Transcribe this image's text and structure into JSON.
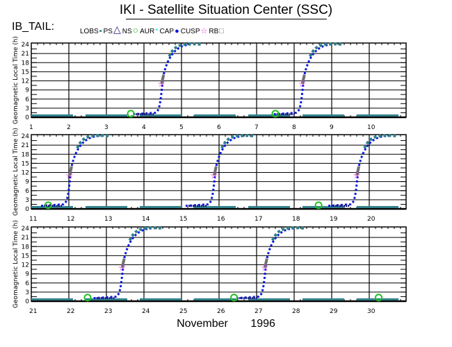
{
  "header": {
    "title": "IKI - Satellite Situation Center (SSC)",
    "craft": "IB_TAIL:"
  },
  "legend": [
    {
      "label": "LOBS",
      "symbol": "square-small",
      "color": "#2e7f8a"
    },
    {
      "label": "PS",
      "symbol": "triangle",
      "color": "#1a1a80"
    },
    {
      "label": "NS",
      "symbol": "circle",
      "color": "#1fc01f"
    },
    {
      "label": "AUR",
      "symbol": "asterisk",
      "color": "#18d8f0"
    },
    {
      "label": "CAP",
      "symbol": "dot",
      "color": "#0a18e0"
    },
    {
      "label": "CUSP",
      "symbol": "star",
      "color": "#f020e0"
    },
    {
      "label": "RB",
      "symbol": "square-open",
      "color": "#707070"
    }
  ],
  "footer": {
    "month": "November",
    "year": "1996"
  },
  "chart_data": {
    "type": "scatter",
    "title": "IKI - Satellite Situation Center (SSC)",
    "ylabel": "Geomagnetic Local Time (h)",
    "xlabel": "November 1996",
    "ylim": [
      0,
      24
    ],
    "yticks": [
      "0",
      "3",
      "6",
      "9",
      "12",
      "15",
      "18",
      "21",
      "24"
    ],
    "panels": [
      {
        "xticks": [
          "1",
          "2",
          "3",
          "4",
          "5",
          "6",
          "7",
          "8",
          "9",
          "10"
        ],
        "xstart": 1,
        "crossings": [
          {
            "day": 4.45,
            "region": "CAP"
          },
          {
            "day": 8.2,
            "region": "CAP"
          }
        ],
        "ns_marks": [
          3.65,
          7.5
        ]
      },
      {
        "xticks": [
          "11",
          "12",
          "13",
          "14",
          "15",
          "16",
          "17",
          "18",
          "19",
          "20"
        ],
        "xstart": 11,
        "crossings": [
          {
            "day": 12.0,
            "region": "CAP"
          },
          {
            "day": 15.85,
            "region": "CAP"
          },
          {
            "day": 19.65,
            "region": "CAP"
          }
        ],
        "ns_marks": [
          11.45,
          18.65
        ]
      },
      {
        "xticks": [
          "21",
          "22",
          "23",
          "24",
          "25",
          "26",
          "27",
          "28",
          "29",
          "30"
        ],
        "xstart": 21,
        "crossings": [
          {
            "day": 23.4,
            "region": "CAP"
          },
          {
            "day": 27.2,
            "region": "CAP"
          }
        ],
        "ns_marks": [
          22.5,
          26.4,
          30.25
        ]
      }
    ]
  }
}
